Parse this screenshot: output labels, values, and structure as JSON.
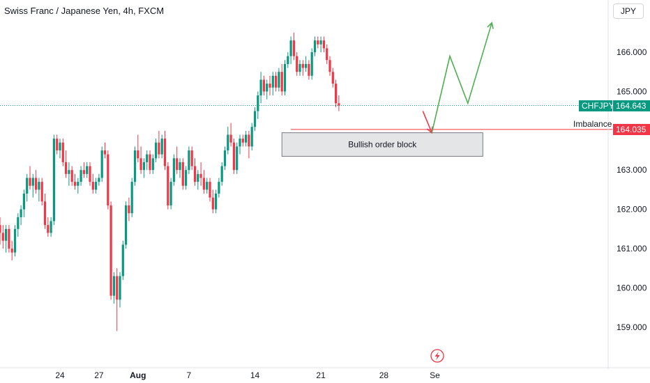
{
  "header": {
    "title": "Swiss Franc / Japanese Yen, 4h, FXCM",
    "currency": "JPY"
  },
  "colors": {
    "up": "#089981",
    "down": "#f23645",
    "text": "#131722",
    "grid": "#f0f3fa",
    "arrow_up": "#4caf50",
    "arrow_down": "#f23645"
  },
  "tags": {
    "symbol": "CHFJPY",
    "last": "164.643",
    "imbalance_price": "164.035"
  },
  "labels": {
    "imbalance": "Imbalance",
    "order_block": "Bullish order block"
  },
  "chart_data": {
    "type": "candlestick",
    "title": "Swiss Franc / Japanese Yen, 4h, FXCM",
    "ylabel": "",
    "xlabel": "",
    "ylim": [
      158.3,
      167.3
    ],
    "yticks": [
      159,
      160,
      161,
      162,
      163,
      164,
      165,
      166
    ],
    "ytick_labels": [
      "159.000",
      "160.000",
      "161.000",
      "162.000",
      "163.000",
      "164.000",
      "165.000",
      "166.000"
    ],
    "xticks": [
      {
        "label": "24",
        "index": 20
      },
      {
        "label": "27",
        "index": 33
      },
      {
        "label": "Aug",
        "index": 46,
        "bold": true
      },
      {
        "label": "7",
        "index": 63
      },
      {
        "label": "14",
        "index": 85
      },
      {
        "label": "21",
        "index": 107
      },
      {
        "label": "28",
        "index": 128
      },
      {
        "label": "Se",
        "index": 145
      }
    ],
    "last_price": 164.643,
    "imbalance_level": 164.035,
    "grid": false,
    "candles": [
      [
        161.6,
        161.8,
        161.1,
        161.4
      ],
      [
        161.4,
        161.6,
        161.0,
        161.2
      ],
      [
        161.2,
        161.6,
        160.9,
        161.5
      ],
      [
        161.5,
        161.6,
        160.9,
        161.0
      ],
      [
        161.0,
        161.2,
        160.7,
        160.9
      ],
      [
        160.9,
        161.6,
        160.8,
        161.5
      ],
      [
        161.5,
        161.9,
        161.3,
        161.8
      ],
      [
        161.8,
        162.1,
        161.6,
        162.0
      ],
      [
        162.0,
        162.5,
        161.8,
        162.4
      ],
      [
        162.4,
        162.9,
        162.2,
        162.8
      ],
      [
        162.8,
        163.1,
        162.5,
        162.6
      ],
      [
        162.6,
        162.9,
        162.3,
        162.8
      ],
      [
        162.8,
        163.0,
        162.4,
        162.5
      ],
      [
        162.5,
        162.8,
        162.2,
        162.7
      ],
      [
        162.7,
        162.8,
        162.1,
        162.2
      ],
      [
        162.2,
        162.4,
        161.5,
        161.6
      ],
      [
        161.6,
        161.8,
        161.3,
        161.4
      ],
      [
        161.4,
        161.8,
        161.3,
        161.7
      ],
      [
        161.7,
        163.9,
        161.6,
        163.8
      ],
      [
        163.8,
        163.9,
        163.4,
        163.5
      ],
      [
        163.5,
        163.8,
        163.3,
        163.7
      ],
      [
        163.7,
        163.8,
        163.1,
        163.2
      ],
      [
        163.2,
        163.5,
        162.8,
        162.9
      ],
      [
        162.9,
        163.2,
        162.6,
        163.0
      ],
      [
        163.0,
        163.1,
        162.6,
        162.7
      ],
      [
        162.7,
        162.9,
        162.5,
        162.6
      ],
      [
        162.6,
        162.8,
        162.4,
        162.7
      ],
      [
        162.7,
        163.1,
        162.6,
        163.0
      ],
      [
        163.0,
        163.2,
        162.8,
        162.9
      ],
      [
        162.9,
        163.2,
        162.8,
        163.1
      ],
      [
        163.1,
        163.2,
        162.6,
        162.7
      ],
      [
        162.7,
        162.9,
        162.4,
        162.5
      ],
      [
        162.5,
        162.8,
        162.4,
        162.7
      ],
      [
        162.7,
        162.9,
        162.6,
        162.8
      ],
      [
        162.8,
        163.6,
        162.7,
        163.5
      ],
      [
        163.5,
        163.7,
        163.3,
        163.4
      ],
      [
        163.4,
        163.5,
        162.0,
        162.1
      ],
      [
        162.1,
        162.2,
        159.7,
        159.8
      ],
      [
        159.8,
        160.4,
        159.6,
        160.3
      ],
      [
        160.3,
        160.5,
        158.9,
        159.7
      ],
      [
        159.7,
        160.4,
        159.5,
        160.3
      ],
      [
        160.3,
        161.2,
        160.2,
        161.1
      ],
      [
        161.1,
        162.2,
        161.0,
        162.1
      ],
      [
        162.1,
        162.3,
        161.7,
        161.9
      ],
      [
        161.9,
        162.8,
        161.8,
        162.7
      ],
      [
        162.7,
        163.6,
        162.6,
        163.5
      ],
      [
        163.5,
        163.9,
        163.2,
        163.3
      ],
      [
        163.3,
        163.6,
        162.9,
        163.0
      ],
      [
        163.0,
        163.3,
        162.8,
        163.2
      ],
      [
        163.2,
        163.5,
        163.0,
        163.4
      ],
      [
        163.4,
        163.5,
        162.9,
        163.0
      ],
      [
        163.0,
        163.4,
        162.9,
        163.3
      ],
      [
        163.3,
        163.8,
        163.2,
        163.7
      ],
      [
        163.7,
        164.0,
        163.3,
        163.4
      ],
      [
        163.4,
        163.9,
        163.3,
        163.8
      ],
      [
        163.8,
        164.0,
        163.0,
        163.1
      ],
      [
        163.1,
        163.2,
        162.0,
        162.1
      ],
      [
        162.1,
        162.8,
        162.0,
        162.7
      ],
      [
        162.7,
        163.4,
        162.6,
        163.3
      ],
      [
        163.3,
        163.6,
        162.9,
        163.0
      ],
      [
        163.0,
        163.3,
        162.8,
        163.2
      ],
      [
        163.2,
        163.3,
        162.5,
        162.6
      ],
      [
        162.6,
        163.1,
        162.5,
        163.0
      ],
      [
        163.0,
        163.6,
        162.9,
        163.5
      ],
      [
        163.5,
        163.6,
        163.0,
        163.1
      ],
      [
        163.1,
        163.3,
        162.6,
        162.7
      ],
      [
        162.7,
        163.0,
        162.5,
        162.9
      ],
      [
        162.9,
        163.2,
        162.6,
        162.8
      ],
      [
        162.8,
        163.0,
        162.4,
        162.5
      ],
      [
        162.5,
        162.8,
        162.4,
        162.7
      ],
      [
        162.7,
        162.8,
        162.2,
        162.3
      ],
      [
        162.3,
        162.5,
        161.9,
        162.0
      ],
      [
        162.0,
        162.5,
        161.9,
        162.4
      ],
      [
        162.4,
        162.8,
        162.3,
        162.7
      ],
      [
        162.7,
        163.2,
        162.6,
        163.1
      ],
      [
        163.1,
        163.6,
        163.0,
        163.5
      ],
      [
        163.5,
        164.1,
        163.4,
        163.9
      ],
      [
        163.9,
        164.2,
        163.6,
        163.7
      ],
      [
        163.7,
        163.8,
        162.9,
        163.0
      ],
      [
        163.0,
        163.7,
        162.9,
        163.6
      ],
      [
        163.6,
        163.9,
        163.4,
        163.8
      ],
      [
        163.8,
        163.9,
        163.6,
        163.7
      ],
      [
        163.7,
        164.0,
        163.6,
        163.9
      ],
      [
        163.9,
        164.0,
        163.3,
        163.6
      ],
      [
        163.6,
        164.2,
        163.5,
        164.1
      ],
      [
        164.1,
        164.6,
        164.0,
        164.5
      ],
      [
        164.5,
        165.0,
        164.3,
        164.9
      ],
      [
        164.9,
        165.5,
        164.7,
        165.3
      ],
      [
        165.3,
        165.4,
        164.9,
        165.0
      ],
      [
        165.0,
        165.3,
        164.8,
        165.2
      ],
      [
        165.2,
        165.4,
        164.9,
        165.1
      ],
      [
        165.1,
        165.5,
        164.9,
        165.4
      ],
      [
        165.4,
        165.5,
        165.0,
        165.1
      ],
      [
        165.1,
        165.6,
        165.0,
        165.5
      ],
      [
        165.5,
        165.7,
        164.9,
        165.0
      ],
      [
        165.0,
        165.8,
        164.9,
        165.7
      ],
      [
        165.7,
        166.0,
        165.6,
        165.9
      ],
      [
        165.9,
        166.4,
        165.7,
        166.3
      ],
      [
        166.3,
        166.5,
        165.8,
        165.9
      ],
      [
        165.9,
        166.0,
        165.4,
        165.5
      ],
      [
        165.5,
        165.8,
        165.4,
        165.7
      ],
      [
        165.7,
        165.8,
        165.4,
        165.6
      ],
      [
        165.6,
        165.9,
        165.5,
        165.7
      ],
      [
        165.7,
        165.8,
        165.3,
        165.4
      ],
      [
        165.4,
        166.1,
        165.3,
        166.0
      ],
      [
        166.0,
        166.4,
        165.9,
        166.3
      ],
      [
        166.3,
        166.4,
        166.1,
        166.2
      ],
      [
        166.2,
        166.4,
        166.0,
        166.3
      ],
      [
        166.3,
        166.4,
        166.0,
        166.1
      ],
      [
        166.1,
        166.2,
        165.7,
        165.8
      ],
      [
        165.8,
        165.9,
        165.4,
        165.5
      ],
      [
        165.5,
        165.6,
        165.1,
        165.2
      ],
      [
        165.2,
        165.3,
        164.6,
        164.7
      ],
      [
        164.7,
        164.9,
        164.5,
        164.64
      ]
    ],
    "annotations": {
      "order_block": {
        "x0": 94,
        "x1": 161,
        "y0": 163.35,
        "y1": 163.95,
        "label": "Bullish order block"
      },
      "imbalance_line": {
        "x0": 97,
        "x1": 170,
        "y": 164.035,
        "label": "Imbalance"
      },
      "projection_down": [
        [
          141,
          164.5
        ],
        [
          144,
          163.95
        ]
      ],
      "projection_up": [
        [
          144,
          163.95
        ],
        [
          150,
          165.9
        ],
        [
          156,
          164.7
        ],
        [
          164,
          166.75
        ]
      ]
    }
  }
}
